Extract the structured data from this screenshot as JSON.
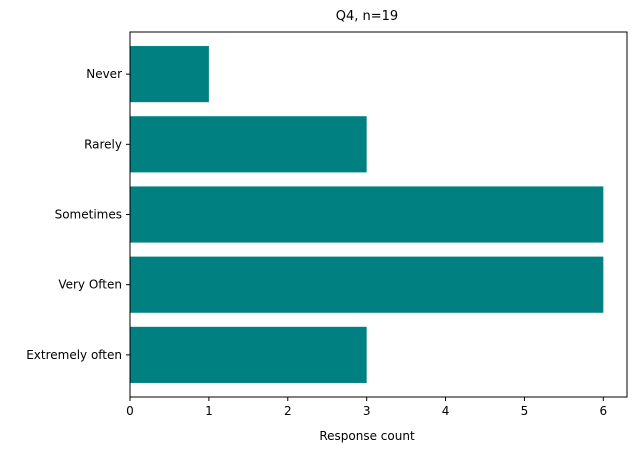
{
  "chart_data": {
    "type": "bar",
    "orientation": "horizontal",
    "title": "Q4, n=19",
    "xlabel": "Response count",
    "ylabel": "",
    "categories": [
      "Never",
      "Rarely",
      "Sometimes",
      "Very Often",
      "Extremely often"
    ],
    "values": [
      1,
      3,
      6,
      6,
      3
    ],
    "xlim": [
      0,
      6.3
    ],
    "xticks": [
      "0",
      "1",
      "2",
      "3",
      "4",
      "5",
      "6"
    ],
    "grid": false,
    "legend": "none",
    "bar_color": "#008080"
  }
}
